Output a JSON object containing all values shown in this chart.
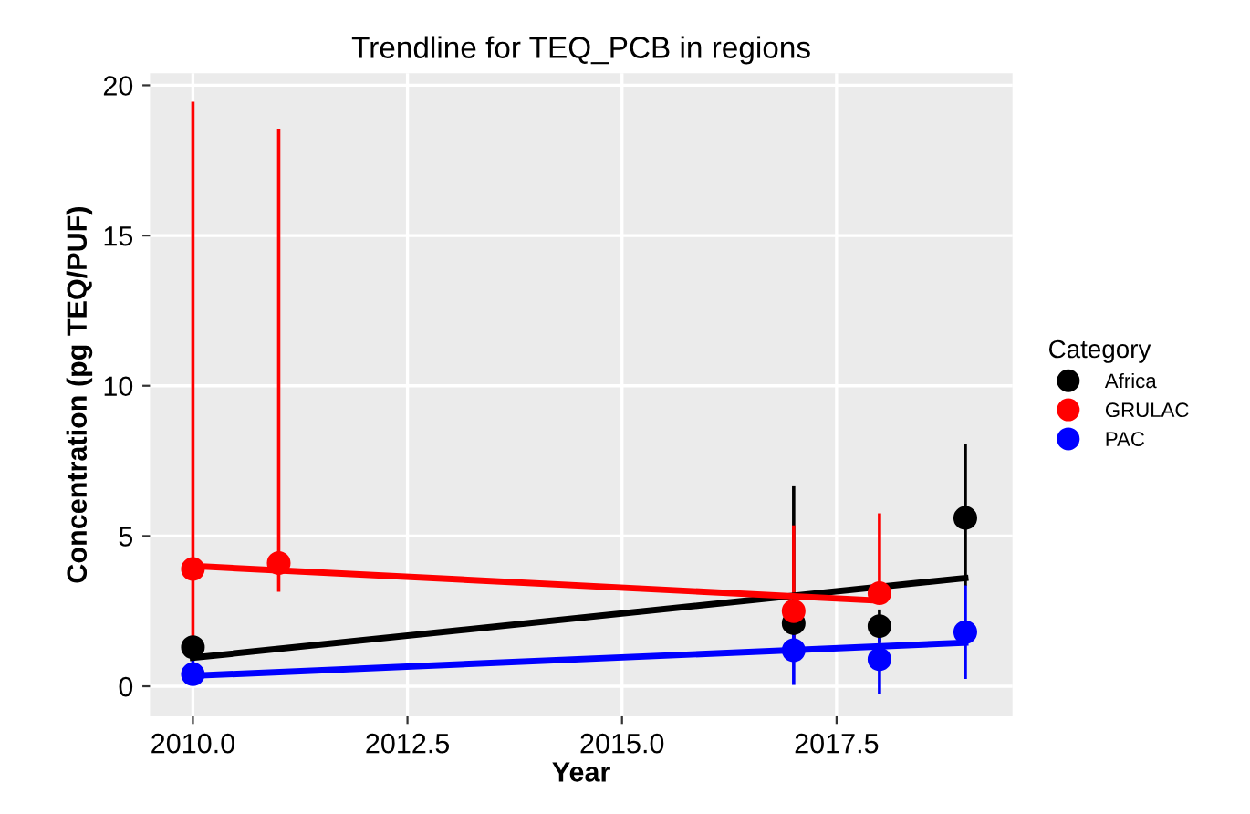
{
  "chart_data": {
    "type": "scatter",
    "title": "Trendline for TEQ_PCB in regions",
    "xlabel": "Year",
    "ylabel": "Concentration (pg TEQ/PUF)",
    "legend_title": "Category",
    "series": [
      {
        "name": "Africa",
        "color": "#000000",
        "x": [
          2010,
          2017,
          2018,
          2019
        ],
        "values": [
          1.3,
          2.1,
          2.0,
          5.6
        ],
        "errors": [
          null,
          [
            1.4,
            6.6
          ],
          [
            1.5,
            2.5
          ],
          [
            3.4,
            8.0
          ]
        ]
      },
      {
        "name": "GRULAC",
        "color": "#ff0000",
        "x": [
          2010,
          2011,
          2017,
          2018
        ],
        "values": [
          3.9,
          4.1,
          2.5,
          3.1
        ],
        "errors": [
          [
            1.5,
            19.4
          ],
          [
            3.2,
            18.5
          ],
          [
            1.5,
            5.3
          ],
          [
            2.8,
            5.7
          ]
        ]
      },
      {
        "name": "PAC",
        "color": "#0000ff",
        "x": [
          2010,
          2017,
          2018,
          2019
        ],
        "values": [
          0.4,
          1.2,
          0.9,
          1.8
        ],
        "errors": [
          [
            0.1,
            1.6
          ],
          [
            0.1,
            2.3
          ],
          [
            -0.2,
            1.8
          ],
          [
            0.3,
            3.3
          ]
        ]
      },
      {
        "type": "line",
        "marker": "none",
        "color": "#000000",
        "x": [
          2010,
          2019
        ],
        "values": [
          0.95,
          3.6
        ]
      },
      {
        "type": "line",
        "marker": "none",
        "color": "#ff0000",
        "x": [
          2010,
          2018
        ],
        "values": [
          4.0,
          2.85
        ]
      },
      {
        "type": "line",
        "marker": "none",
        "color": "#0000ff",
        "x": [
          2010,
          2019
        ],
        "values": [
          0.35,
          1.45
        ]
      }
    ],
    "xlim": [
      2009.5,
      2019.55
    ],
    "xticks": [
      {
        "value": 2010,
        "label": "2010.0"
      },
      {
        "value": 2012.5,
        "label": "2012.5"
      },
      {
        "value": 2015,
        "label": "2015.0"
      },
      {
        "value": 2017.5,
        "label": "2017.5"
      }
    ],
    "ylim": [
      -1,
      20.4
    ],
    "yticks": [
      0,
      5,
      10,
      15,
      20
    ],
    "grid": true,
    "legend": "right",
    "marker": "circle"
  }
}
